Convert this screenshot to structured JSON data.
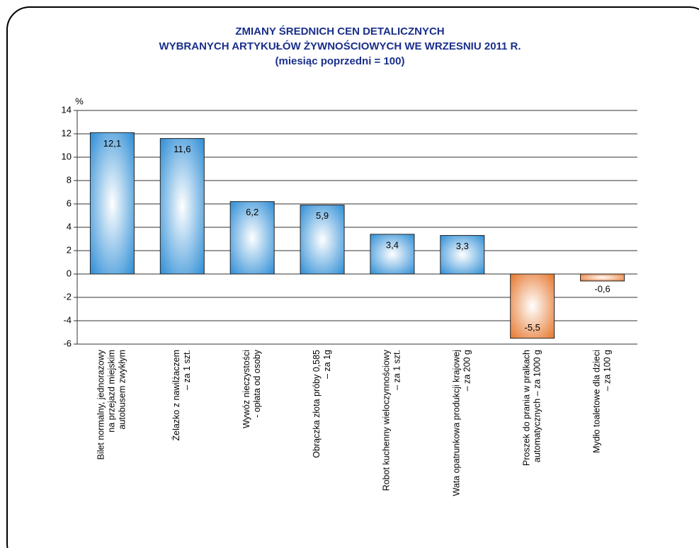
{
  "chart_data": {
    "type": "bar",
    "title": [
      "ZMIANY ŚREDNICH CEN DETALICZNYCH",
      "WYBRANYCH ARTYKUŁÓW ŻYWNOŚCIOWYCH WE WRZESNIU 2011 R."
    ],
    "subtitle": "(miesiąc  poprzedni  =  100)",
    "y_axis_label": "%",
    "categories": [
      [
        "Bilet normalny, jednorazowy",
        "na przejazd miejskim",
        "autobusem  zwykłym"
      ],
      [
        "Żelazko z nawilżaczem",
        "– za 1 szt."
      ],
      [
        "Wywóz nieczystości",
        "- opłata od osoby"
      ],
      [
        "Obrączka złota próby 0,585",
        "– za 1g"
      ],
      [
        "Robot kuchenny wieloczynnościowy",
        "– za 1 szt."
      ],
      [
        "Wata opatrunkowa produkcji krajowej",
        "– za 200 g"
      ],
      [
        "Proszek do prania w pralkach",
        "automatycznych – za 1000 g"
      ],
      [
        "Mydło toaletowe dla dzieci",
        "– za 100 g"
      ]
    ],
    "values": [
      12.1,
      11.6,
      6.2,
      5.9,
      3.4,
      3.3,
      -5.5,
      -0.6
    ],
    "value_labels": [
      "12,1",
      "11,6",
      "6,2",
      "5,9",
      "3,4",
      "3,3",
      "-5,5",
      "-0,6"
    ],
    "color": "#2f8ed6",
    "negative_color": "#e6772e",
    "ylim": [
      -6,
      14
    ],
    "yticks": [
      -6,
      -4,
      -2,
      0,
      2,
      4,
      6,
      8,
      10,
      12,
      14
    ],
    "grid": true
  }
}
